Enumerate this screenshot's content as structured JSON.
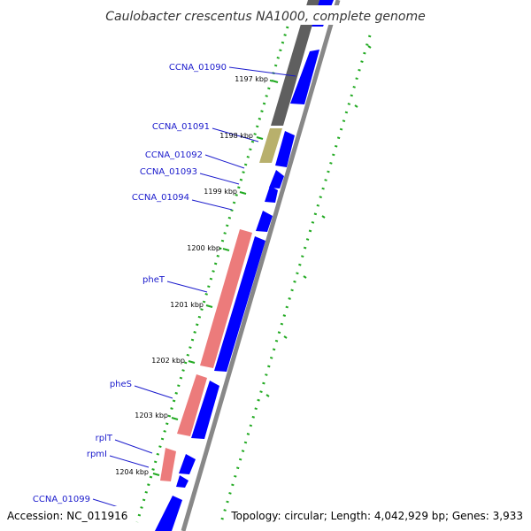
{
  "title": "Caulobacter crescentus NA1000, complete genome",
  "accession_text": "Accession: NC_011916",
  "topology_text": "Topology: circular; Length: 4,042,929 bp; Genes: 3,933",
  "colors": {
    "forward_cds": "#0000ff",
    "reverse_trna": "#ec7b7b",
    "gray_feature": "#5f5f5f",
    "olive_feature": "#b8b06c",
    "backbone": "#888888",
    "tick": "#22aa22",
    "label": "#1a1acc"
  },
  "tick_labels": [
    "1197 kbp",
    "1198 kbp",
    "1199 kbp",
    "1200 kbp",
    "1201 kbp",
    "1202 kbp",
    "1203 kbp",
    "1204 kbp"
  ],
  "gene_labels": [
    "CCNA_01090",
    "CCNA_01091",
    "CCNA_01092",
    "CCNA_01093",
    "CCNA_01094",
    "pheT",
    "pheS",
    "rplT",
    "rpmI",
    "CCNA_01099"
  ]
}
